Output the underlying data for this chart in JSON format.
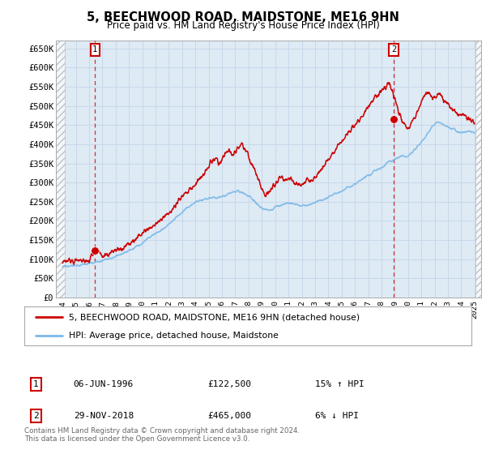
{
  "title": "5, BEECHWOOD ROAD, MAIDSTONE, ME16 9HN",
  "subtitle": "Price paid vs. HM Land Registry's House Price Index (HPI)",
  "ylim": [
    0,
    670000
  ],
  "yticks": [
    0,
    50000,
    100000,
    150000,
    200000,
    250000,
    300000,
    350000,
    400000,
    450000,
    500000,
    550000,
    600000,
    650000
  ],
  "sale1_date_num": 1996.44,
  "sale1_price": 122500,
  "sale1_label": "1",
  "sale2_date_num": 2018.91,
  "sale2_price": 465000,
  "sale2_label": "2",
  "xmin": 1993.5,
  "xmax": 2025.5,
  "hpi_color": "#7ab8e8",
  "price_color": "#cc0000",
  "dot_color": "#cc0000",
  "vline_color": "#cc0000",
  "grid_color": "#c8d8ea",
  "bg_color": "#deeaf4",
  "plot_bg": "#ffffff",
  "legend1_text": "5, BEECHWOOD ROAD, MAIDSTONE, ME16 9HN (detached house)",
  "legend2_text": "HPI: Average price, detached house, Maidstone",
  "note1_label": "1",
  "note1_date": "06-JUN-1996",
  "note1_price": "£122,500",
  "note1_change": "15% ↑ HPI",
  "note2_label": "2",
  "note2_date": "29-NOV-2018",
  "note2_price": "£465,000",
  "note2_change": "6% ↓ HPI",
  "footer": "Contains HM Land Registry data © Crown copyright and database right 2024.\nThis data is licensed under the Open Government Licence v3.0.",
  "hpi_nodes_x": [
    1994.0,
    1994.5,
    1995.0,
    1995.5,
    1996.0,
    1996.5,
    1997.0,
    1997.5,
    1998.0,
    1998.5,
    1999.0,
    1999.5,
    2000.0,
    2000.5,
    2001.0,
    2001.5,
    2002.0,
    2002.5,
    2003.0,
    2003.5,
    2004.0,
    2004.5,
    2005.0,
    2005.5,
    2006.0,
    2006.5,
    2007.0,
    2007.5,
    2008.0,
    2008.5,
    2009.0,
    2009.5,
    2010.0,
    2010.5,
    2011.0,
    2011.5,
    2012.0,
    2012.5,
    2013.0,
    2013.5,
    2014.0,
    2014.5,
    2015.0,
    2015.5,
    2016.0,
    2016.5,
    2017.0,
    2017.5,
    2018.0,
    2018.5,
    2019.0,
    2019.5,
    2020.0,
    2020.5,
    2021.0,
    2021.5,
    2022.0,
    2022.5,
    2023.0,
    2023.5,
    2024.0,
    2024.5,
    2025.0
  ],
  "hpi_nodes_y": [
    80000,
    82000,
    83000,
    85000,
    88000,
    92000,
    96000,
    101000,
    107000,
    114000,
    122000,
    132000,
    143000,
    156000,
    167000,
    178000,
    190000,
    207000,
    222000,
    236000,
    248000,
    255000,
    258000,
    260000,
    263000,
    270000,
    276000,
    274000,
    265000,
    248000,
    235000,
    228000,
    235000,
    242000,
    246000,
    243000,
    240000,
    242000,
    247000,
    254000,
    262000,
    270000,
    278000,
    287000,
    296000,
    308000,
    318000,
    330000,
    340000,
    352000,
    360000,
    368000,
    370000,
    385000,
    405000,
    430000,
    452000,
    455000,
    445000,
    438000,
    430000,
    432000,
    428000
  ],
  "price_nodes_x": [
    1994.0,
    1994.5,
    1995.0,
    1995.5,
    1996.0,
    1996.5,
    1997.0,
    1997.5,
    1998.0,
    1998.5,
    1999.0,
    1999.5,
    2000.0,
    2000.5,
    2001.0,
    2001.5,
    2002.0,
    2002.5,
    2003.0,
    2003.5,
    2004.0,
    2004.5,
    2005.0,
    2005.25,
    2005.5,
    2005.75,
    2006.0,
    2006.25,
    2006.5,
    2006.75,
    2007.0,
    2007.25,
    2007.5,
    2007.75,
    2008.0,
    2008.25,
    2008.5,
    2008.75,
    2009.0,
    2009.25,
    2009.5,
    2009.75,
    2010.0,
    2010.25,
    2010.5,
    2010.75,
    2011.0,
    2011.25,
    2011.5,
    2011.75,
    2012.0,
    2012.25,
    2012.5,
    2012.75,
    2013.0,
    2013.25,
    2013.5,
    2013.75,
    2014.0,
    2014.25,
    2014.5,
    2014.75,
    2015.0,
    2015.25,
    2015.5,
    2015.75,
    2016.0,
    2016.25,
    2016.5,
    2016.75,
    2017.0,
    2017.25,
    2017.5,
    2017.75,
    2018.0,
    2018.25,
    2018.5,
    2018.75,
    2019.0,
    2019.25,
    2019.5,
    2019.75,
    2020.0,
    2020.25,
    2020.5,
    2020.75,
    2021.0,
    2021.25,
    2021.5,
    2021.75,
    2022.0,
    2022.25,
    2022.5,
    2022.75,
    2023.0,
    2023.25,
    2023.5,
    2023.75,
    2024.0,
    2024.25,
    2024.5,
    2024.75,
    2025.0
  ],
  "price_nodes_y": [
    92000,
    95000,
    94000,
    96000,
    98000,
    122500,
    108000,
    115000,
    122000,
    128000,
    138000,
    150000,
    165000,
    180000,
    192000,
    205000,
    220000,
    242000,
    262000,
    278000,
    296000,
    318000,
    340000,
    355000,
    365000,
    350000,
    360000,
    375000,
    385000,
    370000,
    380000,
    392000,
    400000,
    388000,
    370000,
    350000,
    328000,
    305000,
    285000,
    270000,
    278000,
    285000,
    295000,
    305000,
    312000,
    305000,
    310000,
    305000,
    300000,
    298000,
    295000,
    302000,
    308000,
    305000,
    315000,
    325000,
    335000,
    348000,
    360000,
    370000,
    382000,
    395000,
    408000,
    418000,
    428000,
    440000,
    452000,
    462000,
    472000,
    485000,
    498000,
    510000,
    522000,
    532000,
    542000,
    548000,
    555000,
    548000,
    520000,
    490000,
    465000,
    448000,
    440000,
    455000,
    470000,
    490000,
    510000,
    525000,
    535000,
    528000,
    522000,
    530000,
    525000,
    515000,
    505000,
    495000,
    488000,
    480000,
    475000,
    472000,
    470000,
    465000,
    460000
  ]
}
